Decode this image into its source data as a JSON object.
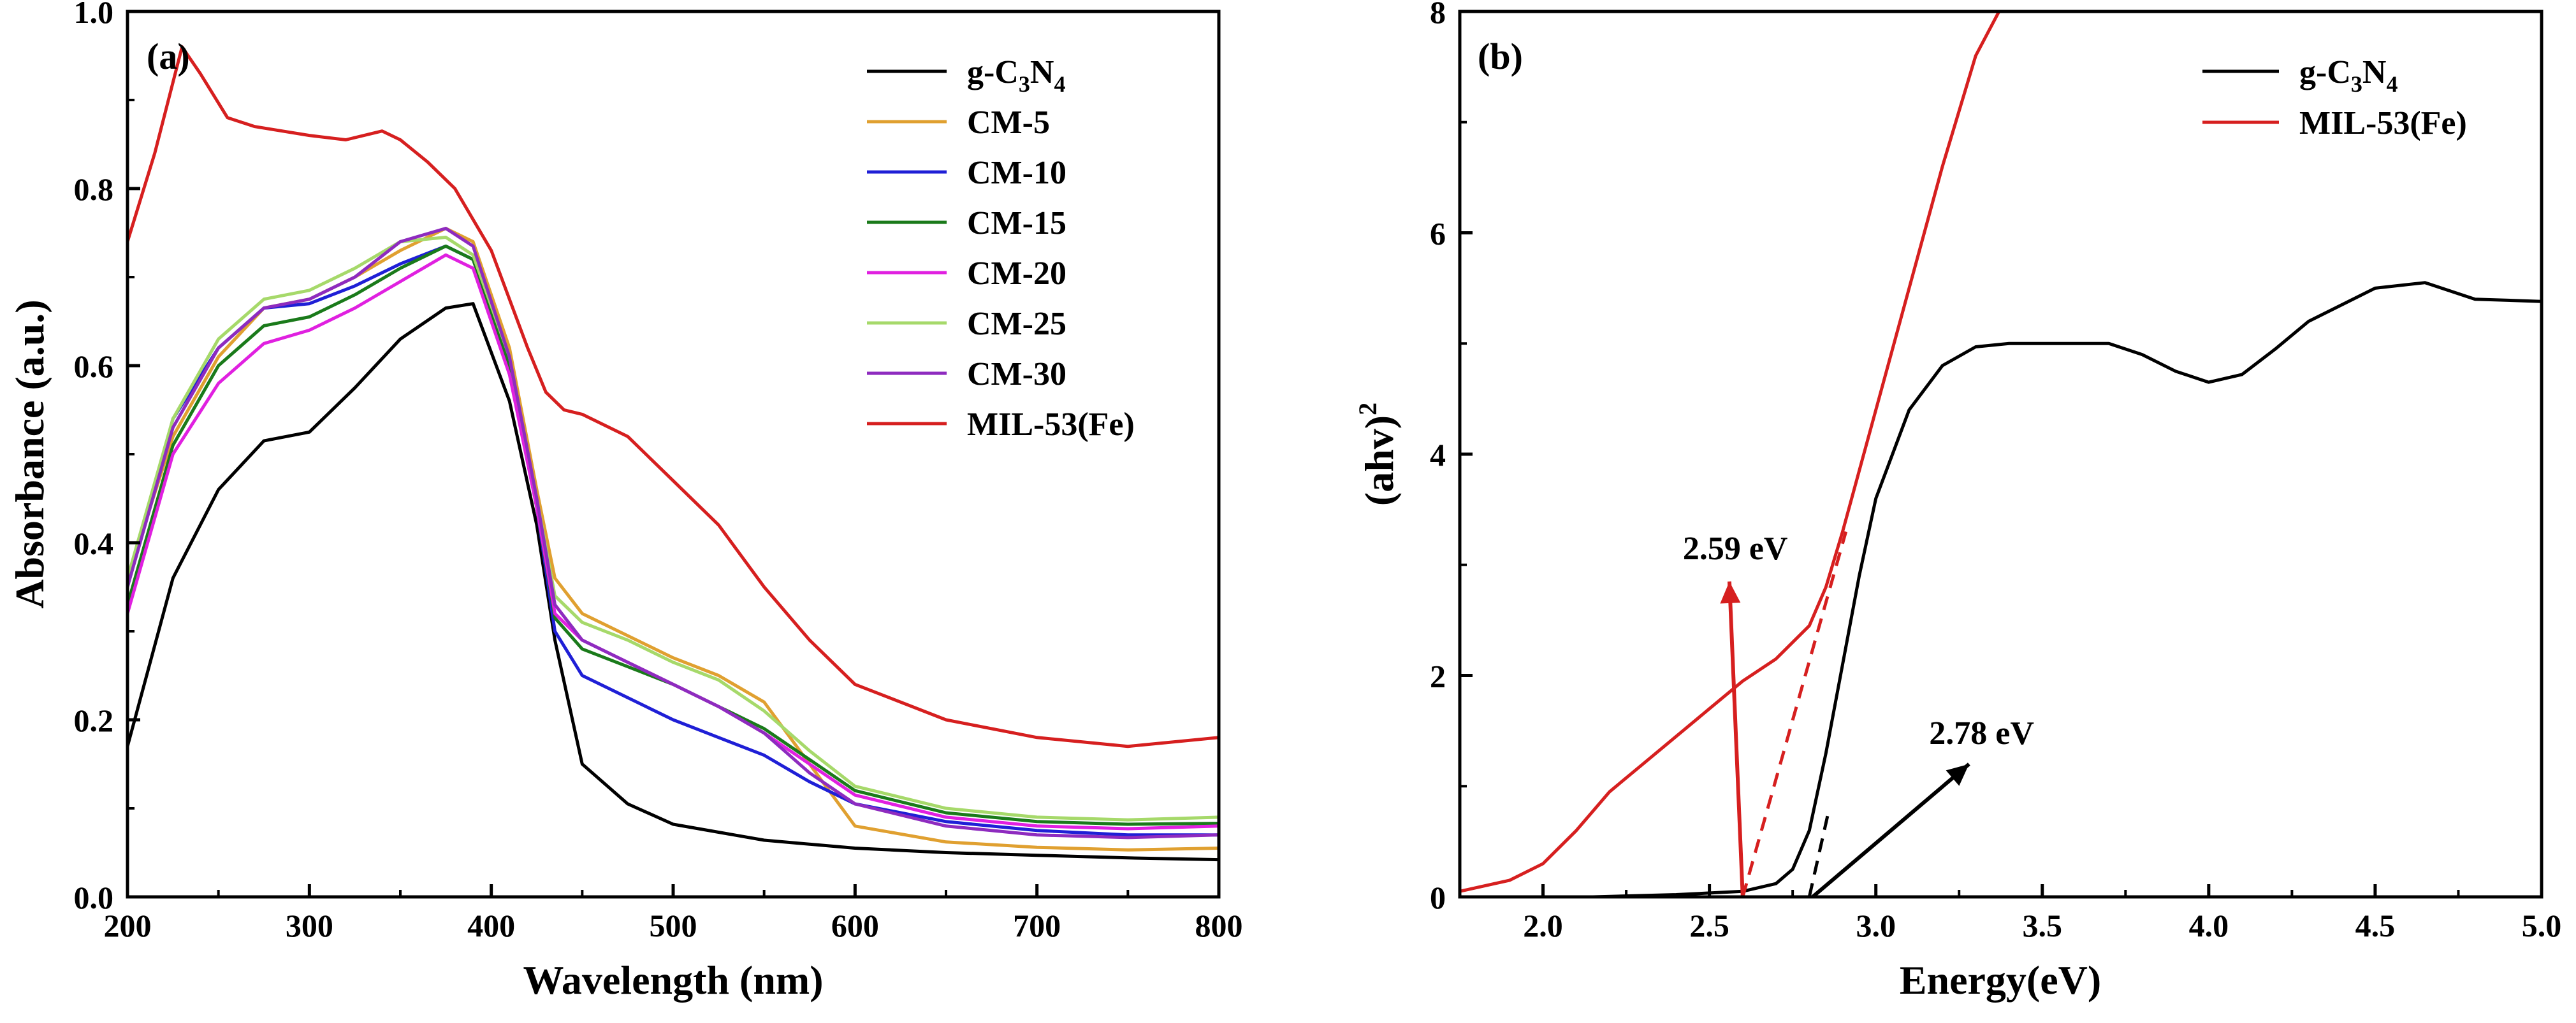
{
  "chart_data": [
    {
      "type": "line",
      "panel_label": "(a)",
      "xlabel": "Wavelength (nm)",
      "ylabel": "Absorbance (a.u.)",
      "xlim": [
        200,
        800
      ],
      "ylim": [
        0.0,
        1.0
      ],
      "xticks": [
        200,
        300,
        400,
        500,
        600,
        700,
        800
      ],
      "yticks": [
        0.0,
        0.2,
        0.4,
        0.6,
        0.8,
        1.0
      ],
      "xtick_labels": [
        "200",
        "300",
        "400",
        "500",
        "600",
        "700",
        "800"
      ],
      "ytick_labels": [
        "0.0",
        "0.2",
        "0.4",
        "0.6",
        "0.8",
        "1.0"
      ],
      "legend_position": "top-right",
      "series": [
        {
          "name": "g-C3N4",
          "label_main": "g-C",
          "sub1": "3",
          "mid": "N",
          "sub2": "4",
          "color": "#000000",
          "x": [
            200,
            225,
            250,
            275,
            300,
            325,
            350,
            375,
            390,
            410,
            425,
            435,
            450,
            475,
            500,
            550,
            600,
            650,
            700,
            750,
            800
          ],
          "y": [
            0.17,
            0.36,
            0.46,
            0.515,
            0.525,
            0.575,
            0.63,
            0.665,
            0.67,
            0.56,
            0.42,
            0.29,
            0.15,
            0.105,
            0.082,
            0.064,
            0.055,
            0.05,
            0.047,
            0.044,
            0.042
          ]
        },
        {
          "name": "CM-5",
          "label": "CM-5",
          "color": "#e0a030",
          "x": [
            200,
            225,
            250,
            275,
            300,
            325,
            350,
            375,
            390,
            410,
            425,
            435,
            450,
            475,
            500,
            525,
            550,
            575,
            600,
            650,
            700,
            750,
            800
          ],
          "y": [
            0.36,
            0.52,
            0.61,
            0.665,
            0.675,
            0.7,
            0.73,
            0.755,
            0.74,
            0.62,
            0.46,
            0.36,
            0.32,
            0.295,
            0.27,
            0.25,
            0.22,
            0.15,
            0.08,
            0.062,
            0.056,
            0.053,
            0.055
          ]
        },
        {
          "name": "CM-10",
          "label": "CM-10",
          "color": "#1f1fd6",
          "x": [
            200,
            225,
            250,
            275,
            300,
            325,
            350,
            375,
            390,
            410,
            425,
            435,
            450,
            475,
            500,
            525,
            550,
            575,
            600,
            650,
            700,
            750,
            800
          ],
          "y": [
            0.35,
            0.54,
            0.62,
            0.665,
            0.67,
            0.69,
            0.715,
            0.735,
            0.72,
            0.6,
            0.44,
            0.3,
            0.25,
            0.225,
            0.2,
            0.18,
            0.16,
            0.13,
            0.105,
            0.085,
            0.075,
            0.07,
            0.07
          ]
        },
        {
          "name": "CM-15",
          "label": "CM-15",
          "color": "#1a7a1a",
          "x": [
            200,
            225,
            250,
            275,
            300,
            325,
            350,
            375,
            390,
            410,
            425,
            435,
            450,
            475,
            500,
            525,
            550,
            575,
            600,
            650,
            700,
            750,
            800
          ],
          "y": [
            0.33,
            0.51,
            0.6,
            0.645,
            0.655,
            0.68,
            0.71,
            0.735,
            0.72,
            0.6,
            0.44,
            0.315,
            0.28,
            0.26,
            0.24,
            0.215,
            0.19,
            0.155,
            0.12,
            0.095,
            0.085,
            0.082,
            0.083
          ]
        },
        {
          "name": "CM-20",
          "label": "CM-20",
          "color": "#e020e0",
          "x": [
            200,
            225,
            250,
            275,
            300,
            325,
            350,
            375,
            390,
            410,
            425,
            435,
            450,
            475,
            500,
            525,
            550,
            575,
            600,
            650,
            700,
            750,
            800
          ],
          "y": [
            0.32,
            0.5,
            0.58,
            0.625,
            0.64,
            0.665,
            0.695,
            0.725,
            0.71,
            0.59,
            0.44,
            0.32,
            0.29,
            0.265,
            0.24,
            0.215,
            0.185,
            0.15,
            0.115,
            0.09,
            0.08,
            0.077,
            0.08
          ]
        },
        {
          "name": "CM-25",
          "label": "CM-25",
          "color": "#a6d96a",
          "x": [
            200,
            225,
            250,
            275,
            300,
            325,
            350,
            375,
            390,
            410,
            425,
            435,
            450,
            475,
            500,
            525,
            550,
            575,
            600,
            650,
            700,
            750,
            800
          ],
          "y": [
            0.36,
            0.54,
            0.63,
            0.675,
            0.685,
            0.71,
            0.74,
            0.745,
            0.725,
            0.61,
            0.45,
            0.34,
            0.31,
            0.29,
            0.265,
            0.245,
            0.21,
            0.165,
            0.125,
            0.1,
            0.09,
            0.087,
            0.09
          ]
        },
        {
          "name": "CM-30",
          "label": "CM-30",
          "color": "#8e2bbf",
          "x": [
            200,
            225,
            250,
            275,
            300,
            325,
            350,
            375,
            390,
            410,
            425,
            435,
            450,
            475,
            500,
            525,
            550,
            575,
            600,
            650,
            700,
            750,
            800
          ],
          "y": [
            0.35,
            0.53,
            0.62,
            0.665,
            0.675,
            0.7,
            0.74,
            0.755,
            0.735,
            0.61,
            0.45,
            0.33,
            0.29,
            0.265,
            0.24,
            0.215,
            0.185,
            0.14,
            0.105,
            0.08,
            0.07,
            0.067,
            0.07
          ]
        },
        {
          "name": "MIL-53(Fe)",
          "label": "MIL-53(Fe)",
          "color": "#d61f1f",
          "x": [
            200,
            215,
            230,
            240,
            255,
            270,
            285,
            300,
            320,
            340,
            350,
            365,
            380,
            400,
            420,
            430,
            440,
            450,
            475,
            500,
            525,
            550,
            575,
            600,
            650,
            700,
            750,
            800
          ],
          "y": [
            0.74,
            0.84,
            0.96,
            0.93,
            0.88,
            0.87,
            0.865,
            0.86,
            0.855,
            0.865,
            0.855,
            0.83,
            0.8,
            0.73,
            0.62,
            0.57,
            0.55,
            0.545,
            0.52,
            0.47,
            0.42,
            0.35,
            0.29,
            0.24,
            0.2,
            0.18,
            0.17,
            0.18
          ]
        }
      ]
    },
    {
      "type": "line",
      "panel_label": "(b)",
      "xlabel": "Energy(eV)",
      "ylabel_main": "(ahv)",
      "ylabel_sup": "2",
      "xlim": [
        1.75,
        5.0
      ],
      "ylim": [
        0,
        8
      ],
      "xticks": [
        2.0,
        2.5,
        3.0,
        3.5,
        4.0,
        4.5,
        5.0
      ],
      "yticks": [
        0,
        2,
        4,
        6,
        8
      ],
      "xtick_labels": [
        "2.0",
        "2.5",
        "3.0",
        "3.5",
        "4.0",
        "4.5",
        "5.0"
      ],
      "ytick_labels": [
        "0",
        "2",
        "4",
        "6",
        "8"
      ],
      "legend_position": "top-right",
      "series": [
        {
          "name": "g-C3N4",
          "label_main": "g-C",
          "sub1": "3",
          "mid": "N",
          "sub2": "4",
          "color": "#000000",
          "x": [
            2.15,
            2.4,
            2.6,
            2.7,
            2.75,
            2.8,
            2.85,
            2.9,
            2.95,
            3.0,
            3.1,
            3.2,
            3.3,
            3.4,
            3.5,
            3.7,
            3.8,
            3.9,
            4.0,
            4.1,
            4.2,
            4.3,
            4.5,
            4.65,
            4.8,
            5.0
          ],
          "y": [
            0.0,
            0.02,
            0.05,
            0.12,
            0.25,
            0.6,
            1.3,
            2.1,
            2.9,
            3.6,
            4.4,
            4.8,
            4.97,
            5.0,
            5.0,
            5.0,
            4.9,
            4.75,
            4.65,
            4.72,
            4.95,
            5.2,
            5.5,
            5.55,
            5.4,
            5.38
          ]
        },
        {
          "name": "MIL-53(Fe)",
          "label": "MIL-53(Fe)",
          "color": "#d61f1f",
          "x": [
            1.75,
            1.9,
            2.0,
            2.1,
            2.2,
            2.3,
            2.4,
            2.5,
            2.6,
            2.7,
            2.8,
            2.85,
            2.9,
            3.0,
            3.1,
            3.2,
            3.3,
            3.37
          ],
          "y": [
            0.05,
            0.15,
            0.3,
            0.6,
            0.95,
            1.2,
            1.45,
            1.7,
            1.95,
            2.15,
            2.45,
            2.8,
            3.3,
            4.4,
            5.5,
            6.6,
            7.6,
            8.0
          ]
        }
      ],
      "dashed_fits": [
        {
          "color": "#d61f1f",
          "x1": 2.6,
          "y1": 0.0,
          "x2": 2.91,
          "y2": 3.3
        },
        {
          "color": "#000000",
          "x1": 2.8,
          "y1": 0.0,
          "x2": 2.86,
          "y2": 0.8
        }
      ],
      "annotations": [
        {
          "text": "2.59 eV",
          "color": "#d61f1f",
          "from_x": 2.6,
          "from_y": 0.0,
          "to_x": 2.56,
          "to_y": 2.85,
          "label_x": 2.42,
          "label_y": 3.05
        },
        {
          "text": "2.78 eV",
          "color": "#000000",
          "from_x": 2.81,
          "from_y": 0.0,
          "to_x": 3.28,
          "to_y": 1.2,
          "label_x": 3.16,
          "label_y": 1.38
        }
      ]
    }
  ]
}
